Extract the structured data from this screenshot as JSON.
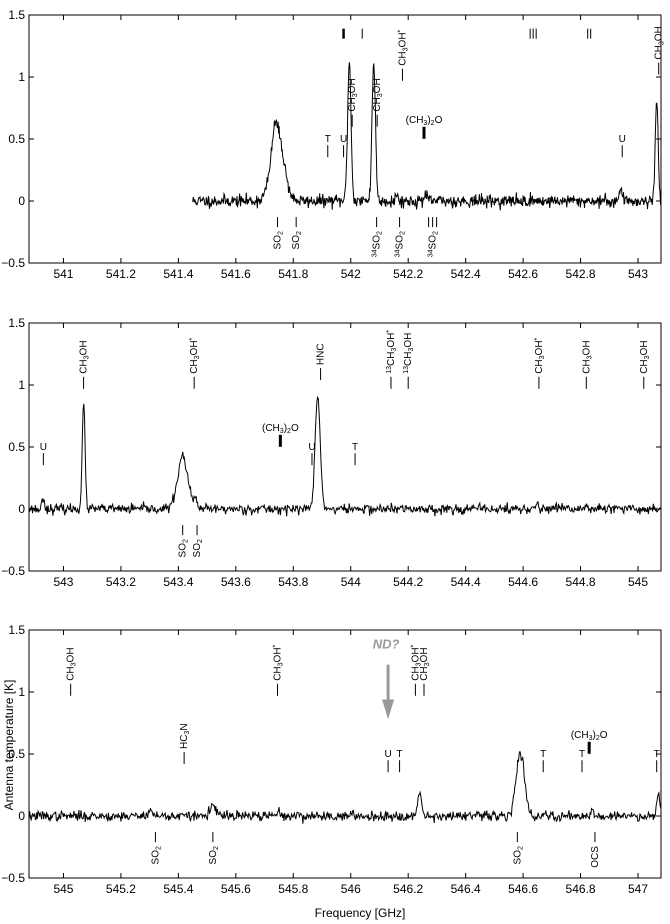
{
  "figure": {
    "ylabel": "Antenna temperature [K]",
    "xlabel": "Frequency [GHz]"
  },
  "chart_data": [
    {
      "type": "line",
      "xlim": [
        540.88,
        543.08
      ],
      "ylim": [
        -0.5,
        1.5
      ],
      "yticks": [
        -0.5,
        0,
        0.5,
        1,
        1.5
      ],
      "yticklabels": [
        "−0.5",
        "0",
        "0.5",
        "1",
        "1.5"
      ],
      "xticks": [
        541,
        541.2,
        541.4,
        541.6,
        541.8,
        542,
        542.2,
        542.4,
        542.6,
        542.8,
        543
      ],
      "xticklabels": [
        "541",
        "541.2",
        "541.4",
        "541.6",
        "541.8",
        "542",
        "542.2",
        "542.4",
        "542.6",
        "542.8",
        "543"
      ],
      "spectrum": {
        "start": 541.45,
        "end": 543.08,
        "noise": 0.025,
        "seed": 11,
        "peaks": [
          {
            "x": 541.745,
            "a": 0.55,
            "w": 0.022
          },
          {
            "x": 541.735,
            "a": 0.12,
            "w": 0.008
          },
          {
            "x": 541.995,
            "a": 1.12,
            "w": 0.006
          },
          {
            "x": 542.08,
            "a": 1.11,
            "w": 0.006
          },
          {
            "x": 542.16,
            "a": 0.05,
            "w": 0.004
          },
          {
            "x": 542.26,
            "a": 0.06,
            "w": 0.004
          },
          {
            "x": 542.94,
            "a": 0.1,
            "w": 0.005
          },
          {
            "x": 543.065,
            "a": 0.82,
            "w": 0.005
          }
        ]
      },
      "labels_above": [
        {
          "x": 541.92,
          "y": 0.45,
          "text": "T"
        },
        {
          "x": 541.975,
          "y": 0.45,
          "text": "U"
        },
        {
          "x": 542.005,
          "y": 0.68,
          "text": "CH3OH",
          "rot": true
        },
        {
          "x": 542.092,
          "y": 0.68,
          "text": "CH3OH",
          "rot": true
        },
        {
          "x": 542.18,
          "y": 1.05,
          "text": "CH3OH*",
          "rot": true
        },
        {
          "x": 542.255,
          "y": 0.55,
          "text": "(CH3)2O",
          "bar": true
        },
        {
          "x": 542.945,
          "y": 0.45,
          "text": "U"
        },
        {
          "x": 543.072,
          "y": 1.1,
          "text": "CH3OH",
          "rot": true
        }
      ],
      "labels_below": [
        {
          "x": 541.745,
          "text": "SO2"
        },
        {
          "x": 541.81,
          "text": "SO2"
        },
        {
          "x": 542.09,
          "text": "34SO2"
        },
        {
          "x": 542.17,
          "text": "34SO2"
        },
        {
          "x": 542.285,
          "text": "34SO2",
          "multi": 3
        }
      ],
      "top_marks": [
        {
          "x": 541.975,
          "n": 1,
          "thick": true
        },
        {
          "x": 542.04,
          "n": 1
        },
        {
          "x": 542.635,
          "n": 3
        },
        {
          "x": 542.83,
          "n": 2
        }
      ]
    },
    {
      "type": "line",
      "xlim": [
        542.88,
        545.08
      ],
      "ylim": [
        -0.5,
        1.5
      ],
      "yticks": [
        -0.5,
        0,
        0.5,
        1,
        1.5
      ],
      "yticklabels": [
        "−0.5",
        "0",
        "0.5",
        "1",
        "1.5"
      ],
      "xticks": [
        543,
        543.2,
        543.4,
        543.6,
        543.8,
        544,
        544.2,
        544.4,
        544.6,
        544.8,
        545
      ],
      "xticklabels": [
        "543",
        "543.2",
        "543.4",
        "543.6",
        "543.8",
        "544",
        "544.2",
        "544.4",
        "544.6",
        "544.8",
        "545"
      ],
      "spectrum": {
        "start": 542.88,
        "end": 545.08,
        "noise": 0.02,
        "seed": 23,
        "peaks": [
          {
            "x": 542.93,
            "a": 0.1,
            "w": 0.004
          },
          {
            "x": 543.07,
            "a": 0.85,
            "w": 0.005
          },
          {
            "x": 543.415,
            "a": 0.42,
            "w": 0.018
          },
          {
            "x": 543.46,
            "a": 0.07,
            "w": 0.005
          },
          {
            "x": 543.885,
            "a": 0.9,
            "w": 0.009
          },
          {
            "x": 544.65,
            "a": 0.05,
            "w": 0.004
          },
          {
            "x": 544.82,
            "a": 0.04,
            "w": 0.004
          }
        ]
      },
      "labels_above": [
        {
          "x": 542.93,
          "y": 0.45,
          "text": "U"
        },
        {
          "x": 543.07,
          "y": 1.05,
          "text": "CH3OH",
          "rot": true
        },
        {
          "x": 543.455,
          "y": 1.05,
          "text": "CH3OH*",
          "rot": true
        },
        {
          "x": 543.755,
          "y": 0.55,
          "text": "(CH3)2O",
          "bar": true
        },
        {
          "x": 543.865,
          "y": 0.45,
          "text": "U"
        },
        {
          "x": 543.895,
          "y": 1.12,
          "text": "HNC",
          "rot": true
        },
        {
          "x": 544.015,
          "y": 0.45,
          "text": "T"
        },
        {
          "x": 544.14,
          "y": 1.05,
          "text": "13CH3OH*",
          "rot": true
        },
        {
          "x": 544.2,
          "y": 1.05,
          "text": "13CH3OH",
          "rot": true
        },
        {
          "x": 544.655,
          "y": 1.05,
          "text": "CH3OH*",
          "rot": true
        },
        {
          "x": 544.82,
          "y": 1.05,
          "text": "CH3OH",
          "rot": true
        },
        {
          "x": 545.02,
          "y": 1.05,
          "text": "CH3OH",
          "rot": true
        }
      ],
      "labels_below": [
        {
          "x": 543.415,
          "text": "SO2"
        },
        {
          "x": 543.465,
          "text": "SO2"
        }
      ],
      "top_marks": []
    },
    {
      "type": "line",
      "xlim": [
        544.88,
        547.08
      ],
      "ylim": [
        -0.5,
        1.5
      ],
      "yticks": [
        -0.5,
        0,
        0.5,
        1,
        1.5
      ],
      "yticklabels": [
        "−0.5",
        "0",
        "0.5",
        "1",
        "1.5"
      ],
      "xticks": [
        545,
        545.2,
        545.4,
        545.6,
        545.8,
        546,
        546.2,
        546.4,
        546.6,
        546.8,
        547
      ],
      "xticklabels": [
        "545",
        "545.2",
        "545.4",
        "545.6",
        "545.8",
        "546",
        "546.2",
        "546.4",
        "546.6",
        "546.8",
        "547"
      ],
      "spectrum": {
        "start": 544.88,
        "end": 547.08,
        "noise": 0.02,
        "seed": 37,
        "peaks": [
          {
            "x": 545.3,
            "a": 0.04,
            "w": 0.01
          },
          {
            "x": 545.52,
            "a": 0.07,
            "w": 0.012
          },
          {
            "x": 545.75,
            "a": 0.04,
            "w": 0.005
          },
          {
            "x": 546.24,
            "a": 0.22,
            "w": 0.006
          },
          {
            "x": 546.59,
            "a": 0.5,
            "w": 0.015
          },
          {
            "x": 546.84,
            "a": 0.06,
            "w": 0.004
          },
          {
            "x": 547.07,
            "a": 0.2,
            "w": 0.005
          }
        ]
      },
      "labels_above": [
        {
          "x": 545.025,
          "y": 1.05,
          "text": "CH3OH",
          "rot": true
        },
        {
          "x": 545.42,
          "y": 0.5,
          "text": "HC3N",
          "rot": true
        },
        {
          "x": 545.745,
          "y": 1.05,
          "text": "CH3OH*",
          "rot": true
        },
        {
          "x": 546.13,
          "y": 0.45,
          "text": "U"
        },
        {
          "x": 546.17,
          "y": 0.45,
          "text": "T"
        },
        {
          "x": 546.225,
          "y": 1.05,
          "text": "CH3OH*",
          "rot": true
        },
        {
          "x": 546.255,
          "y": 1.05,
          "text": "CH3OH",
          "rot": true
        },
        {
          "x": 546.67,
          "y": 0.45,
          "text": "T"
        },
        {
          "x": 546.805,
          "y": 0.45,
          "text": "T"
        },
        {
          "x": 546.83,
          "y": 0.55,
          "text": "(CH3)2O",
          "bar": true
        },
        {
          "x": 547.065,
          "y": 0.45,
          "text": "T"
        }
      ],
      "labels_below": [
        {
          "x": 545.32,
          "text": "SO2"
        },
        {
          "x": 545.52,
          "text": "SO2"
        },
        {
          "x": 546.58,
          "text": "SO2"
        },
        {
          "x": 546.85,
          "text": "OCS"
        }
      ],
      "top_marks": [],
      "annotation": {
        "text": "ND?",
        "x": 546.13
      }
    }
  ]
}
